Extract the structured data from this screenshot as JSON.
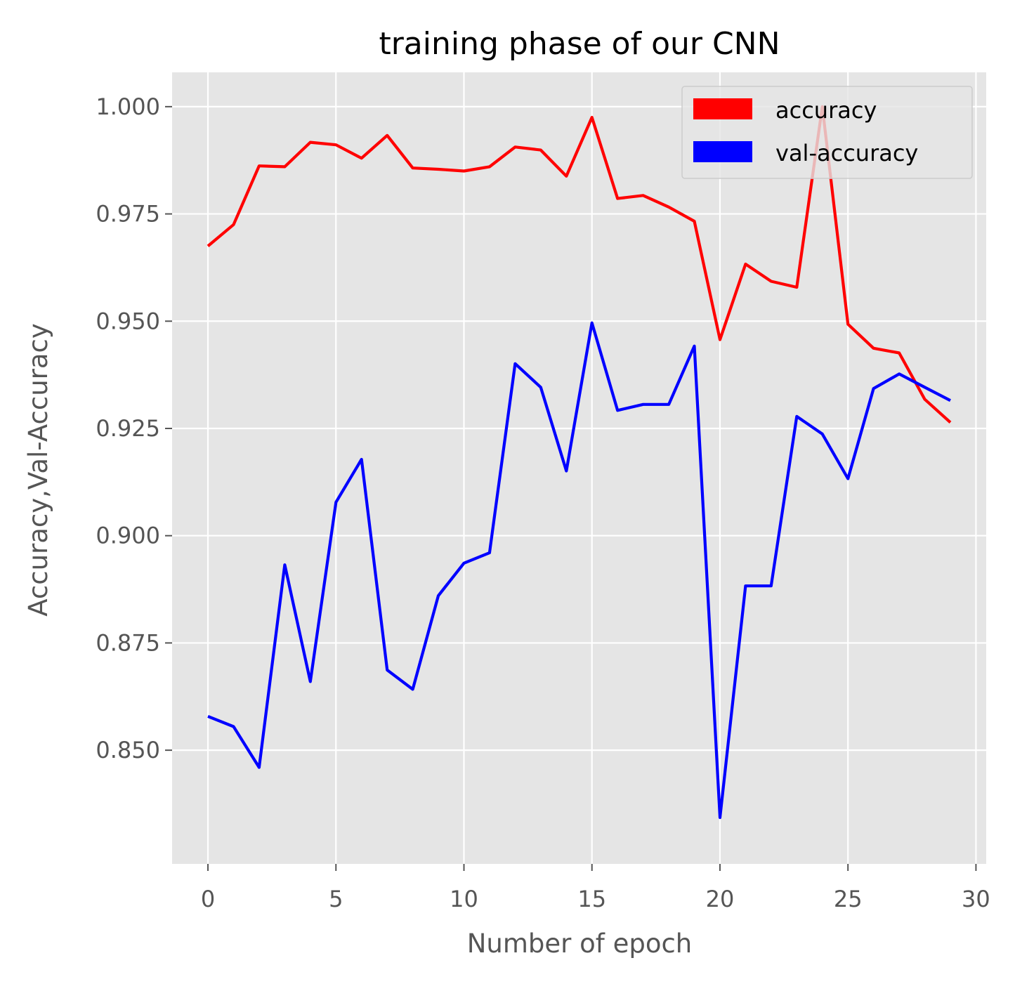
{
  "chart_data": {
    "type": "line",
    "title": "training phase of our CNN",
    "xlabel": "Number of epoch",
    "ylabel": "Accuracy,Val-Accuracy",
    "xlim": [
      -1.4,
      30.4
    ],
    "ylim": [
      0.8235,
      1.008
    ],
    "xticks": [
      0,
      5,
      10,
      15,
      20,
      25,
      30
    ],
    "yticks": [
      0.85,
      0.875,
      0.9,
      0.925,
      0.95,
      0.975,
      1.0
    ],
    "ytick_labels": [
      "0.850",
      "0.875",
      "0.900",
      "0.925",
      "0.950",
      "0.975",
      "1.000"
    ],
    "grid": true,
    "legend_position": "top-right",
    "colors": {
      "plot_background": "#e5e5e5",
      "grid": "#ffffff",
      "tick_text": "#555555",
      "title_text": "#000000"
    },
    "x": [
      0,
      1,
      2,
      3,
      4,
      5,
      6,
      7,
      8,
      9,
      10,
      11,
      12,
      13,
      14,
      15,
      16,
      17,
      18,
      19,
      20,
      21,
      22,
      23,
      24,
      25,
      26,
      27,
      28,
      29
    ],
    "series": [
      {
        "name": "accuracy",
        "color": "#ff0000",
        "values": [
          0.9675,
          0.9725,
          0.9862,
          0.986,
          0.9917,
          0.9911,
          0.988,
          0.9933,
          0.9857,
          0.9854,
          0.985,
          0.986,
          0.9906,
          0.9899,
          0.9838,
          0.9975,
          0.9786,
          0.9793,
          0.9766,
          0.9733,
          0.9457,
          0.9633,
          0.9593,
          0.9579,
          1.0,
          0.9493,
          0.9437,
          0.9426,
          0.9318,
          0.9264
        ]
      },
      {
        "name": "val-accuracy",
        "color": "#0000ff",
        "values": [
          0.8579,
          0.8555,
          0.846,
          0.8932,
          0.866,
          0.9078,
          0.9178,
          0.8687,
          0.8642,
          0.886,
          0.8936,
          0.896,
          0.9401,
          0.9346,
          0.9151,
          0.9496,
          0.9292,
          0.9306,
          0.9306,
          0.9442,
          0.8343,
          0.8883,
          0.8883,
          0.9278,
          0.9237,
          0.9133,
          0.9343,
          0.9377,
          0.9346,
          0.9315
        ]
      }
    ]
  }
}
